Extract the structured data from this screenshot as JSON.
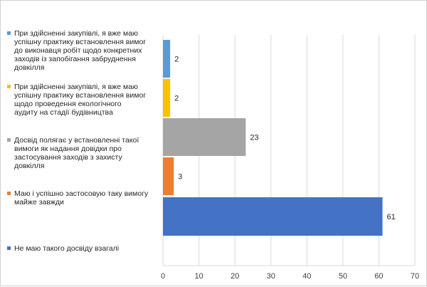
{
  "chart_data": {
    "type": "bar",
    "orientation": "horizontal",
    "title": "",
    "xlabel": "",
    "ylabel": "",
    "xlim": [
      0,
      70
    ],
    "x_ticks": [
      0,
      10,
      20,
      30,
      40,
      50,
      60,
      70
    ],
    "grid": true,
    "legend_position": "left",
    "data_labels": true,
    "series": [
      {
        "name": "При здійсненні закупівлі, я вже маю успішну практику встановлення вимог до виконавця робіт щодо конкретних заходів із запобігання забруднення довкілля",
        "value": 2,
        "color": "#5B9BD5"
      },
      {
        "name": "При здійсненні закупівлі, я вже маю успішну практику встановлення вимог щодо проведення екологічного аудиту на стадії будівництва",
        "value": 2,
        "color": "#FFC000"
      },
      {
        "name": "Досвід полягає у встановленні такої вимоги як надання довідки про застосування заходів з захисту довкілля",
        "value": 23,
        "color": "#A5A5A5"
      },
      {
        "name": "Маю і успішно застосовую таку вимогу майже завжди",
        "value": 3,
        "color": "#ED7D31"
      },
      {
        "name": "Не маю такого досвіду взагалі",
        "value": 61,
        "color": "#4472C4"
      }
    ]
  },
  "legend_lines": [
    [
      "При здійсненні закупівлі, я вже маю",
      "успішну практику встановлення вимог",
      "до виконавця робіт щодо конкретних",
      "заходів із запобігання забруднення",
      "довкілля"
    ],
    [
      "При здійсненні закупівлі, я вже маю",
      "успішну практику встановлення вимог",
      "щодо проведення екологічного",
      "аудиту на стадії будівництва"
    ],
    [
      "Досвід полягає у встановленні такої",
      "вимоги як надання довідки про",
      "застосування заходів з захисту",
      "довкілля"
    ],
    [
      "Маю і успішно застосовую таку вимогу",
      "майже завжди"
    ],
    [
      "Не маю такого досвіду взагалі"
    ]
  ]
}
